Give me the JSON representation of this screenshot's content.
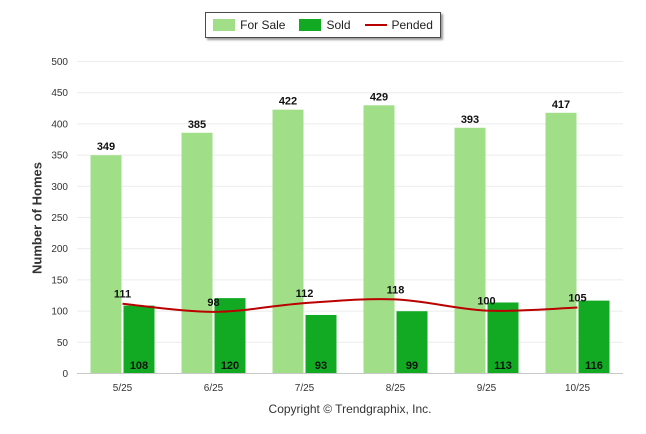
{
  "legend": {
    "for_sale_label": "For Sale",
    "sold_label": "Sold",
    "pended_label": "Pended"
  },
  "footer": {
    "copyright": "Copyright © Trendgraphix, Inc."
  },
  "colors": {
    "for_sale": "#a0df88",
    "sold": "#11aa22",
    "pended": "#bb0000"
  },
  "chart_data": {
    "type": "bar",
    "title": "",
    "xlabel": "",
    "ylabel": "Number of Homes",
    "ylim": [
      0,
      500
    ],
    "yticks": [
      0,
      50,
      100,
      150,
      200,
      250,
      300,
      350,
      400,
      450,
      500
    ],
    "grid": true,
    "legend_position": "top-center",
    "categories": [
      "5/25",
      "6/25",
      "7/25",
      "8/25",
      "9/25",
      "10/25"
    ],
    "series": [
      {
        "name": "For Sale",
        "type": "bar",
        "values": [
          349,
          385,
          422,
          429,
          393,
          417
        ]
      },
      {
        "name": "Sold",
        "type": "bar",
        "values": [
          108,
          120,
          93,
          99,
          113,
          116
        ]
      },
      {
        "name": "Pended",
        "type": "line",
        "values": [
          111,
          98,
          112,
          118,
          100,
          105
        ]
      }
    ]
  }
}
